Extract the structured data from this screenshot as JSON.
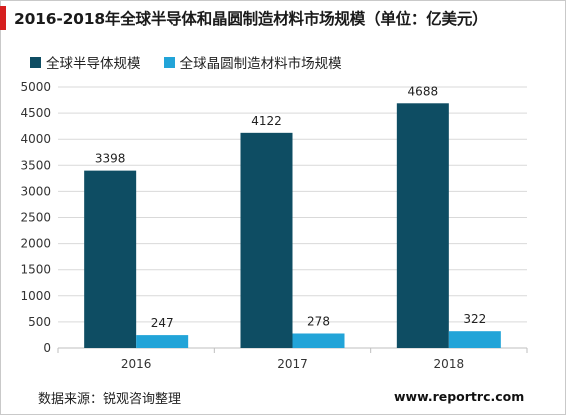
{
  "page": {
    "title": "2016-2018年全球半导体和晶圆制造材料市场规模（单位：亿美元）",
    "source": "数据来源：锐观咨询整理",
    "website": "www.reportrc.com"
  },
  "colors": {
    "series_1": "#0e4d63",
    "series_2": "#22a4d8",
    "title_mark": "#d61f1f",
    "grid": "#d9d9d9"
  },
  "chart_data": {
    "type": "bar",
    "title": "2016-2018年全球半导体和晶圆制造材料市场规模（单位：亿美元）",
    "categories": [
      "2016",
      "2017",
      "2018"
    ],
    "series": [
      {
        "name": "全球半导体规模",
        "values": [
          3398,
          4122,
          4688
        ]
      },
      {
        "name": "全球晶圆制造材料市场规模",
        "values": [
          247,
          278,
          322
        ]
      }
    ],
    "ylim": [
      0,
      5000
    ],
    "yticks": [
      0,
      500,
      1000,
      1500,
      2000,
      2500,
      3000,
      3500,
      4000,
      4500,
      5000
    ],
    "grid": true,
    "legend": "top-left",
    "data_labels": true
  }
}
